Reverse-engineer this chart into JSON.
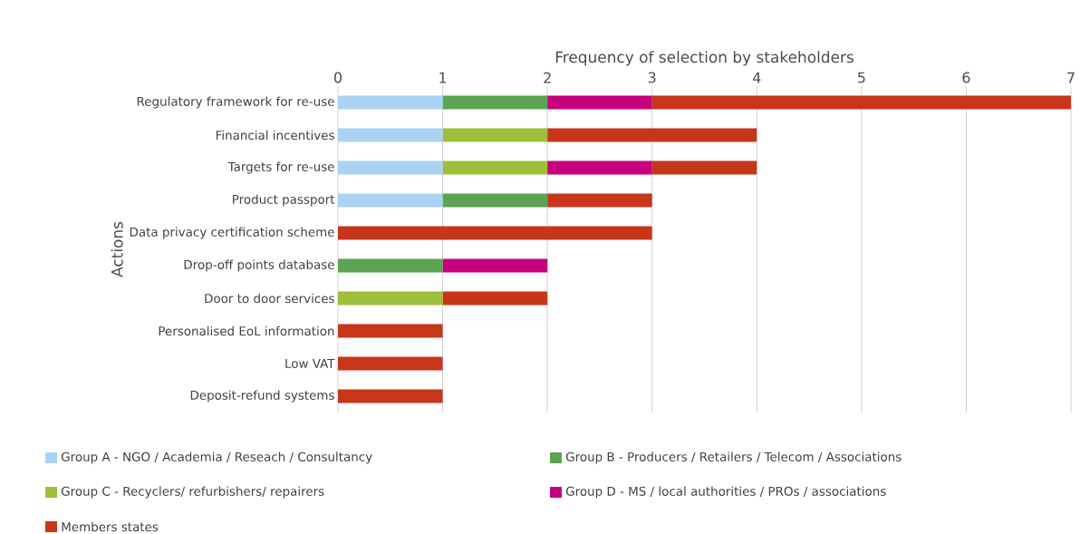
{
  "chart_data": {
    "type": "bar",
    "orientation": "horizontal",
    "stacked": true,
    "xlabel": "Frequency of selection by stakeholders",
    "ylabel": "Actions",
    "categories": [
      "Regulatory framework for re-use",
      "Financial incentives",
      "Targets for re-use",
      "Product passport",
      "Data privacy certification scheme",
      "Drop-off points database",
      "Door to door services",
      "Personalised EoL information",
      "Low VAT",
      "Deposit-refund systems"
    ],
    "series": [
      {
        "name": "Group A - NGO / Academia / Reseach / Consultancy",
        "color": "#a9d3f5",
        "values": [
          1,
          1,
          1,
          1,
          0,
          0,
          0,
          0,
          0,
          0
        ]
      },
      {
        "name": "Group B - Producers / Retailers / Telecom / Associations",
        "color": "#5ba452",
        "values": [
          1,
          0,
          0,
          1,
          0,
          1,
          0,
          0,
          0,
          0
        ]
      },
      {
        "name": "Group C - Recyclers/ refurbishers/ repairers",
        "color": "#9fbf3b",
        "values": [
          0,
          1,
          1,
          0,
          0,
          0,
          1,
          0,
          0,
          0
        ]
      },
      {
        "name": "Group D - MS / local authorities / PROs / associations",
        "color": "#c6007e",
        "values": [
          1,
          0,
          1,
          0,
          0,
          1,
          0,
          0,
          0,
          0
        ]
      },
      {
        "name": "Members states",
        "color": "#c8361a",
        "values": [
          4,
          2,
          1,
          1,
          3,
          0,
          1,
          1,
          1,
          1
        ]
      }
    ],
    "xlim": [
      0,
      7
    ],
    "xticks": [
      0,
      1,
      2,
      3,
      4,
      5,
      6,
      7
    ],
    "grid": "x",
    "legend": "bottom"
  }
}
